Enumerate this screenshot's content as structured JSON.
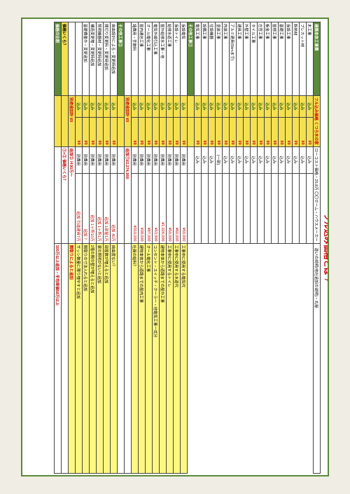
{
  "title": "フル込み価格とは ?",
  "section1": {
    "header_left": "建築本体工事費",
    "header_mid": "フル込み価格\nくつろ木の家",
    "header_right": "ローコスト価格・25.8万\n〇〇ホーム・ハウスメーカー",
    "header_note": "違いの説明(他社追加の説明)・丸秘",
    "rows": [
      {
        "a": "木工事",
        "b": "込み",
        "c": "¥0",
        "d": "込み",
        "e": "",
        "f": ""
      },
      {
        "a": "プレカット材",
        "b": "込み",
        "c": "¥0",
        "d": "込み",
        "e": "",
        "f": ""
      },
      {
        "a": "断熱材",
        "b": "込み",
        "c": "¥0",
        "d": "込み",
        "e": "",
        "f": ""
      },
      {
        "a": "仮設工事",
        "b": "込み",
        "c": "¥0",
        "d": "込み",
        "e": "",
        "f": ""
      },
      {
        "a": "基礎工事",
        "b": "込み",
        "c": "¥0",
        "d": "込み",
        "e": "",
        "f": ""
      },
      {
        "a": "屋根工事",
        "b": "込み",
        "c": "¥0",
        "d": "込み",
        "e": "",
        "f": ""
      },
      {
        "a": "板金工事",
        "b": "込み",
        "c": "¥0",
        "d": "込み",
        "e": "",
        "f": ""
      },
      {
        "a": "左官工事",
        "b": "込み",
        "c": "¥0",
        "d": "込み",
        "e": "",
        "f": ""
      },
      {
        "a": "タイル工事",
        "b": "込み",
        "c": "¥0",
        "d": "込み",
        "e": "",
        "f": ""
      },
      {
        "a": "外壁工事",
        "b": "込み",
        "c": "¥0",
        "d": "込み",
        "e": "",
        "f": ""
      },
      {
        "a": "建具工事",
        "b": "込み",
        "c": "¥0",
        "d": "込み",
        "e": "",
        "f": ""
      },
      {
        "a": "アルミ建具(5kmまで)",
        "b": "込み",
        "c": "¥0",
        "d": "込み",
        "e": "",
        "f": ""
      },
      {
        "a": "内装工事",
        "b": "込み",
        "c": "¥0",
        "d": "込み",
        "e": "",
        "f": ""
      },
      {
        "a": "塗装工事",
        "b": "込み",
        "c": "¥0",
        "d": "(一部)",
        "e": "",
        "f": ""
      },
      {
        "a": "住設機器",
        "b": "込み",
        "c": "¥0",
        "d": "込み",
        "e": "",
        "f": ""
      },
      {
        "a": "設備工事",
        "b": "込み",
        "c": "¥0",
        "d": "込み",
        "e": "",
        "f": ""
      },
      {
        "a": "電気工事",
        "b": "込み",
        "c": "¥0",
        "d": "込み",
        "e": "",
        "f": ""
      }
    ]
  },
  "section2": {
    "header": "その他工事①",
    "rows": [
      {
        "a": "仮設電気",
        "b": "込み",
        "c": "¥0",
        "d": "別費用",
        "e": "¥50,000",
        "f": "工事中に使用する電気代",
        "y": true
      },
      {
        "a": "仮設トイレ",
        "b": "込み",
        "c": "¥0",
        "d": "別費用",
        "e": "¥60,000",
        "f": "工事中に使用する水道代",
        "y": true
      },
      {
        "a": "給排水道工事",
        "b": "込み",
        "c": "¥0",
        "d": "別費用",
        "e": "¥50,000",
        "f": "工事中に使用するトイレ",
        "y": true
      },
      {
        "a": "屋外給排水工事・他",
        "b": "込み",
        "c": "¥0",
        "d": "別費用",
        "e": "¥1,026,000",
        "f": "建物本体から道路までの屋外工事",
        "y": true
      },
      {
        "a": "電気外線引込工事",
        "b": "込み",
        "c": "¥0",
        "d": "別費用",
        "e": "¥53,900",
        "f": "コンセント・スイッチ・クーラー・他電気工事一式分",
        "y": true
      },
      {
        "a": "オール電化工事",
        "b": "込み",
        "c": "¥0",
        "d": "別費用",
        "e": "¥87,000",
        "f": "オール電化工事",
        "y": true
      },
      {
        "a": "屋内通信工事",
        "b": "込み",
        "c": "¥0",
        "d": "別費用",
        "e": "¥38,000",
        "f": "建物本体から道路までの屋内工事",
        "y": true
      },
      {
        "a": "諸費用・手数料",
        "b": "込み",
        "c": "¥0",
        "d": "別費用",
        "e": "¥910,000",
        "f": "社員の給料？",
        "y": true
      }
    ],
    "sum_label": "別途追加計 ¥0",
    "sum_right": "追加①¥2,274,900"
  },
  "section3": {
    "header": "その他工事②",
    "rows": [
      {
        "a": "自由設計による・変更時追加",
        "b": "込み",
        "c": "¥0",
        "d": "別費用",
        "e": "40万",
        "er": "追加",
        "f": "自由度ない？",
        "y": true
      },
      {
        "a": "間切り変更料・変更時追加",
        "b": "込み",
        "c": "¥0",
        "d": "別費用",
        "e": "1部屋1万",
        "er": "追加",
        "f": "部屋数が増えると追加",
        "y": true
      },
      {
        "a": "照明機器材・変更時追加",
        "b": "込み",
        "c": "¥0",
        "d": "別費用",
        "e": "1ヶ所1万",
        "er": "追加",
        "f": "家の照明がないと追加",
        "y": true
      },
      {
        "a": "構造変更増・変更時追加",
        "b": "込み",
        "c": "¥0",
        "d": "別費用",
        "e": "1ヶ所10万",
        "er": "追加",
        "f": "2階の間の壁が増えると追加",
        "y": true
      },
      {
        "a": "基礎費番外・変更追加",
        "b": "込み",
        "c": "¥0",
        "d": "別費用",
        "e": "？",
        "er": "追加",
        "f": "間取りの寸法入れると追加",
        "y": true
      },
      {
        "a": "",
        "b": "込み",
        "c": "¥0",
        "d": "別費用",
        "e": "引違建具7万",
        "er": "追加",
        "f": "サッシ数量に限り増やすと追加",
        "y": true
      }
    ],
    "sum_label": "別途追加計 ¥0",
    "sum_right_a": "追加② Ｈ90万～",
    "sum_right_b": "間取りによると追加",
    "total_label": "価格いくら？",
    "total_right": "①+② 価格いくら？"
  },
  "footer": {
    "left": "価格の比較",
    "right": "300万以上追加・平均単価58万以上"
  }
}
